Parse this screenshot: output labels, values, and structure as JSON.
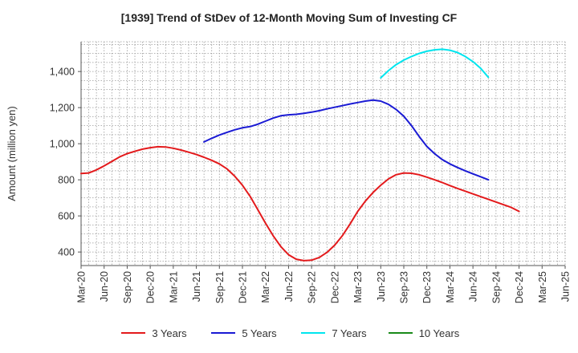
{
  "chart_data": {
    "type": "line",
    "title": "[1939]  Trend of StDev of 12-Month Moving Sum of Investing CF",
    "xlabel": "",
    "ylabel": "Amount (million yen)",
    "ylim": [
      325,
      1565
    ],
    "yticks": [
      400,
      600,
      800,
      1000,
      1200,
      1400
    ],
    "ytick_labels": [
      "400",
      "600",
      "800",
      "1,000",
      "1,200",
      "1,400"
    ],
    "x_ticks": [
      "Mar-20",
      "Jun-20",
      "Sep-20",
      "Dec-20",
      "Mar-21",
      "Jun-21",
      "Sep-21",
      "Dec-21",
      "Mar-22",
      "Jun-22",
      "Sep-22",
      "Dec-22",
      "Mar-23",
      "Jun-23",
      "Sep-23",
      "Dec-23",
      "Mar-24",
      "Jun-24",
      "Sep-24",
      "Dec-24",
      "Mar-25",
      "Jun-25"
    ],
    "grid": true,
    "legend_position": "bottom",
    "series": [
      {
        "name": "3 Years",
        "color": "#e31a1c",
        "points": [
          [
            "Mar-20",
            835
          ],
          [
            "Apr-20",
            838
          ],
          [
            "May-20",
            855
          ],
          [
            "Jun-20",
            877
          ],
          [
            "Jul-20",
            902
          ],
          [
            "Aug-20",
            927
          ],
          [
            "Sep-20",
            945
          ],
          [
            "Oct-20",
            958
          ],
          [
            "Nov-20",
            970
          ],
          [
            "Dec-20",
            978
          ],
          [
            "Jan-21",
            983
          ],
          [
            "Feb-21",
            982
          ],
          [
            "Mar-21",
            975
          ],
          [
            "Apr-21",
            965
          ],
          [
            "May-21",
            953
          ],
          [
            "Jun-21",
            940
          ],
          [
            "Jul-21",
            925
          ],
          [
            "Aug-21",
            908
          ],
          [
            "Sep-21",
            888
          ],
          [
            "Oct-21",
            860
          ],
          [
            "Nov-21",
            820
          ],
          [
            "Dec-21",
            770
          ],
          [
            "Jan-22",
            708
          ],
          [
            "Feb-22",
            635
          ],
          [
            "Mar-22",
            560
          ],
          [
            "Apr-22",
            490
          ],
          [
            "May-22",
            430
          ],
          [
            "Jun-22",
            385
          ],
          [
            "Jul-22",
            360
          ],
          [
            "Aug-22",
            352
          ],
          [
            "Sep-22",
            355
          ],
          [
            "Oct-22",
            370
          ],
          [
            "Nov-22",
            398
          ],
          [
            "Dec-22",
            438
          ],
          [
            "Jan-23",
            490
          ],
          [
            "Feb-23",
            555
          ],
          [
            "Mar-23",
            625
          ],
          [
            "Apr-23",
            682
          ],
          [
            "May-23",
            730
          ],
          [
            "Jun-23",
            770
          ],
          [
            "Jul-23",
            805
          ],
          [
            "Aug-23",
            828
          ],
          [
            "Sep-23",
            838
          ],
          [
            "Oct-23",
            836
          ],
          [
            "Nov-23",
            828
          ],
          [
            "Dec-23",
            815
          ],
          [
            "Jan-24",
            800
          ],
          [
            "Feb-24",
            785
          ],
          [
            "Mar-24",
            768
          ],
          [
            "Apr-24",
            752
          ],
          [
            "May-24",
            737
          ],
          [
            "Jun-24",
            722
          ],
          [
            "Jul-24",
            707
          ],
          [
            "Aug-24",
            692
          ],
          [
            "Sep-24",
            677
          ],
          [
            "Oct-24",
            662
          ],
          [
            "Nov-24",
            647
          ],
          [
            "Dec-24",
            625
          ]
        ]
      },
      {
        "name": "5 Years",
        "color": "#1a1ad4",
        "points": [
          [
            "Jul-21",
            1010
          ],
          [
            "Aug-21",
            1030
          ],
          [
            "Sep-21",
            1048
          ],
          [
            "Oct-21",
            1063
          ],
          [
            "Nov-21",
            1077
          ],
          [
            "Dec-21",
            1088
          ],
          [
            "Jan-22",
            1095
          ],
          [
            "Feb-22",
            1108
          ],
          [
            "Mar-22",
            1125
          ],
          [
            "Apr-22",
            1142
          ],
          [
            "May-22",
            1155
          ],
          [
            "Jun-22",
            1160
          ],
          [
            "Jul-22",
            1163
          ],
          [
            "Aug-22",
            1168
          ],
          [
            "Sep-22",
            1175
          ],
          [
            "Oct-22",
            1183
          ],
          [
            "Nov-22",
            1193
          ],
          [
            "Dec-22",
            1202
          ],
          [
            "Jan-23",
            1211
          ],
          [
            "Feb-23",
            1220
          ],
          [
            "Mar-23",
            1228
          ],
          [
            "Apr-23",
            1236
          ],
          [
            "May-23",
            1242
          ],
          [
            "Jun-23",
            1236
          ],
          [
            "Jul-23",
            1218
          ],
          [
            "Aug-23",
            1190
          ],
          [
            "Sep-23",
            1152
          ],
          [
            "Oct-23",
            1100
          ],
          [
            "Nov-23",
            1040
          ],
          [
            "Dec-23",
            985
          ],
          [
            "Jan-24",
            945
          ],
          [
            "Feb-24",
            912
          ],
          [
            "Mar-24",
            888
          ],
          [
            "Apr-24",
            868
          ],
          [
            "May-24",
            850
          ],
          [
            "Jun-24",
            833
          ],
          [
            "Jul-24",
            817
          ],
          [
            "Aug-24",
            800
          ]
        ]
      },
      {
        "name": "7 Years",
        "color": "#00e5ee",
        "points": [
          [
            "Jun-23",
            1365
          ],
          [
            "Jul-23",
            1405
          ],
          [
            "Aug-23",
            1438
          ],
          [
            "Sep-23",
            1463
          ],
          [
            "Oct-23",
            1483
          ],
          [
            "Nov-23",
            1500
          ],
          [
            "Dec-23",
            1512
          ],
          [
            "Jan-24",
            1520
          ],
          [
            "Feb-24",
            1523
          ],
          [
            "Mar-24",
            1518
          ],
          [
            "Apr-24",
            1505
          ],
          [
            "May-24",
            1483
          ],
          [
            "Jun-24",
            1455
          ],
          [
            "Jul-24",
            1418
          ],
          [
            "Aug-24",
            1368
          ]
        ]
      },
      {
        "name": "10 Years",
        "color": "#1a8a1a",
        "points": []
      }
    ]
  }
}
